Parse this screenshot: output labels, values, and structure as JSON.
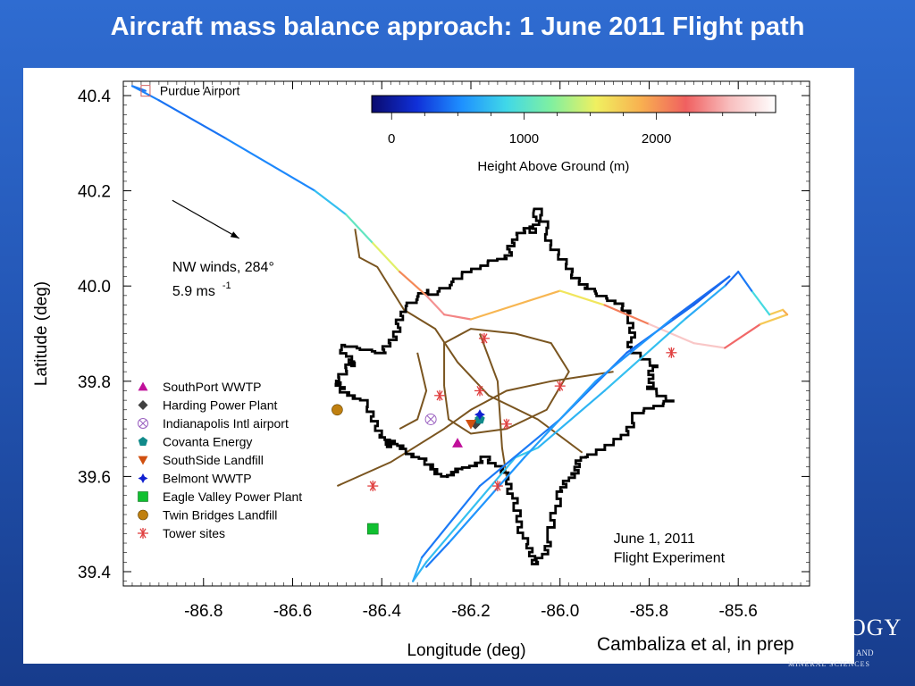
{
  "slide": {
    "title": "Aircraft mass balance approach:  1 June 2011 Flight path",
    "citation": "Cambaliza et al, in prep",
    "logo_fragment": "OGY",
    "logo_sub_a": "AND",
    "logo_sub_b": "MINERAL SCIENCES"
  },
  "chart_data": {
    "type": "scatter",
    "title": "",
    "xlabel": "Longitude (deg)",
    "ylabel": "Latitude (deg)",
    "xlim": [
      -86.98,
      -85.44
    ],
    "ylim": [
      39.37,
      40.43
    ],
    "xticks": [
      -86.8,
      -86.6,
      -86.4,
      -86.2,
      -86.0,
      -85.8,
      -85.6
    ],
    "yticks": [
      39.4,
      39.6,
      39.8,
      40.0,
      40.2,
      40.4
    ],
    "colorbar": {
      "label": "Height Above Ground (m)",
      "ticks": [
        0,
        1000,
        2000
      ],
      "range": [
        -150,
        2900
      ],
      "colors": [
        "#0a0a6e",
        "#1030d8",
        "#1e90ff",
        "#40d8e8",
        "#80f0a0",
        "#f0f060",
        "#f8b050",
        "#f06060",
        "#f8c0c0",
        "#ffffff"
      ]
    },
    "annotations": {
      "start_label": "Purdue Airport",
      "wind_line1": "NW winds, 284°",
      "wind_line2": "5.9 ms",
      "wind_sup": "-1",
      "experiment_line1": "June 1, 2011",
      "experiment_line2": "Flight Experiment"
    },
    "wind_arrow": {
      "from": [
        -86.87,
        40.18
      ],
      "to": [
        -86.72,
        40.1
      ]
    },
    "legend_position": "left-middle",
    "sources": [
      {
        "name": "SouthPort WWTP",
        "marker": "triangle",
        "color": "#c0109a",
        "lon": -86.23,
        "lat": 39.67
      },
      {
        "name": "Harding Power Plant",
        "marker": "diamond",
        "color": "#404040",
        "lon": -86.19,
        "lat": 39.71
      },
      {
        "name": "Indianapolis Intl airport",
        "marker": "circle-x",
        "color": "#9a60c0",
        "lon": -86.29,
        "lat": 39.72
      },
      {
        "name": "Covanta Energy",
        "marker": "pentagon",
        "color": "#108a8a",
        "lon": -86.18,
        "lat": 39.72
      },
      {
        "name": "SouthSide Landfill",
        "marker": "triangle-down",
        "color": "#d05010",
        "lon": -86.2,
        "lat": 39.71
      },
      {
        "name": "Belmont WWTP",
        "marker": "star4",
        "color": "#1020d0",
        "lon": -86.18,
        "lat": 39.73
      },
      {
        "name": "Eagle Valley Power Plant",
        "marker": "square",
        "color": "#10c030",
        "lon": -86.42,
        "lat": 39.49
      },
      {
        "name": "Twin Bridges Landfill",
        "marker": "circle",
        "color": "#c08010",
        "lon": -86.5,
        "lat": 39.74
      }
    ],
    "tower_sites": {
      "name": "Tower sites",
      "color": "#e04040",
      "points": [
        [
          -86.17,
          39.89
        ],
        [
          -86.27,
          39.77
        ],
        [
          -86.18,
          39.78
        ],
        [
          -86.0,
          39.79
        ],
        [
          -86.12,
          39.71
        ],
        [
          -86.42,
          39.58
        ],
        [
          -85.75,
          39.86
        ],
        [
          -86.14,
          39.58
        ]
      ]
    },
    "flight_path": {
      "series": "Height Above Ground (m)",
      "points": [
        [
          -86.93,
          40.41,
          400
        ],
        [
          -86.96,
          40.42,
          500
        ],
        [
          -86.9,
          40.39,
          450
        ],
        [
          -86.75,
          40.31,
          400
        ],
        [
          -86.55,
          40.2,
          600
        ],
        [
          -86.48,
          40.15,
          900
        ],
        [
          -86.42,
          40.09,
          1200
        ],
        [
          -86.36,
          40.03,
          1800
        ],
        [
          -86.3,
          39.98,
          2300
        ],
        [
          -86.26,
          39.94,
          2500
        ],
        [
          -86.2,
          39.93,
          2200
        ],
        [
          -86.0,
          39.99,
          1500
        ],
        [
          -85.9,
          39.96,
          1700
        ],
        [
          -85.8,
          39.92,
          2500
        ],
        [
          -85.7,
          39.88,
          2700
        ],
        [
          -85.63,
          39.87,
          2500
        ],
        [
          -85.55,
          39.92,
          2000
        ],
        [
          -85.49,
          39.94,
          1500
        ],
        [
          -85.5,
          39.95,
          2300
        ],
        [
          -85.53,
          39.94,
          1200
        ],
        [
          -85.57,
          39.99,
          600
        ],
        [
          -85.6,
          40.03,
          300
        ],
        [
          -85.63,
          40.0,
          500
        ],
        [
          -85.72,
          39.93,
          800
        ],
        [
          -85.9,
          39.78,
          700
        ],
        [
          -86.05,
          39.66,
          700
        ],
        [
          -86.1,
          39.64,
          900
        ],
        [
          -86.3,
          39.42,
          600
        ],
        [
          -86.33,
          39.38,
          800
        ],
        [
          -86.31,
          39.43,
          500
        ],
        [
          -86.18,
          39.58,
          400
        ],
        [
          -86.0,
          39.72,
          500
        ],
        [
          -85.85,
          39.86,
          400
        ],
        [
          -85.7,
          39.96,
          400
        ],
        [
          -85.62,
          40.02,
          300
        ],
        [
          -85.75,
          39.93,
          500
        ],
        [
          -85.92,
          39.8,
          600
        ],
        [
          -86.08,
          39.64,
          600
        ],
        [
          -86.25,
          39.46,
          500
        ],
        [
          -86.3,
          39.41,
          400
        ]
      ]
    },
    "city_outline": {
      "color": "#000000",
      "points": [
        [
          -86.05,
          40.17
        ],
        [
          -86.02,
          40.09
        ],
        [
          -85.98,
          40.03
        ],
        [
          -85.94,
          39.99
        ],
        [
          -85.88,
          39.96
        ],
        [
          -85.84,
          39.93
        ],
        [
          -85.84,
          39.87
        ],
        [
          -85.79,
          39.83
        ],
        [
          -85.8,
          39.78
        ],
        [
          -85.75,
          39.75
        ],
        [
          -85.83,
          39.72
        ],
        [
          -85.88,
          39.67
        ],
        [
          -85.95,
          39.64
        ],
        [
          -85.97,
          39.6
        ],
        [
          -86.0,
          39.56
        ],
        [
          -86.02,
          39.47
        ],
        [
          -86.05,
          39.42
        ],
        [
          -86.08,
          39.47
        ],
        [
          -86.1,
          39.54
        ],
        [
          -86.12,
          39.6
        ],
        [
          -86.17,
          39.64
        ],
        [
          -86.22,
          39.62
        ],
        [
          -86.26,
          39.6
        ],
        [
          -86.3,
          39.63
        ],
        [
          -86.35,
          39.65
        ],
        [
          -86.38,
          39.67
        ],
        [
          -86.4,
          39.7
        ],
        [
          -86.44,
          39.76
        ],
        [
          -86.49,
          39.78
        ],
        [
          -86.5,
          39.8
        ],
        [
          -86.46,
          39.84
        ],
        [
          -86.49,
          39.88
        ],
        [
          -86.4,
          39.86
        ],
        [
          -86.37,
          39.9
        ],
        [
          -86.35,
          39.95
        ],
        [
          -86.29,
          39.99
        ],
        [
          -86.22,
          40.03
        ],
        [
          -86.17,
          40.05
        ],
        [
          -86.12,
          40.06
        ],
        [
          -86.1,
          40.1
        ],
        [
          -86.06,
          40.12
        ],
        [
          -86.05,
          40.17
        ]
      ]
    },
    "roads": {
      "color": "#7a5520",
      "lines": [
        [
          [
            -86.46,
            40.12
          ],
          [
            -86.45,
            40.06
          ],
          [
            -86.41,
            40.04
          ],
          [
            -86.35,
            39.95
          ],
          [
            -86.28,
            39.91
          ],
          [
            -86.23,
            39.84
          ],
          [
            -86.16,
            39.77
          ],
          [
            -86.05,
            39.72
          ],
          [
            -85.95,
            39.65
          ]
        ],
        [
          [
            -86.5,
            39.58
          ],
          [
            -86.38,
            39.63
          ],
          [
            -86.26,
            39.7
          ],
          [
            -86.2,
            39.74
          ],
          [
            -86.12,
            39.78
          ],
          [
            -86.02,
            39.8
          ],
          [
            -85.88,
            39.82
          ]
        ],
        [
          [
            -86.26,
            39.79
          ],
          [
            -86.26,
            39.88
          ],
          [
            -86.2,
            39.91
          ],
          [
            -86.1,
            39.9
          ],
          [
            -86.02,
            39.88
          ],
          [
            -85.98,
            39.82
          ],
          [
            -86.03,
            39.74
          ],
          [
            -86.12,
            39.7
          ],
          [
            -86.2,
            39.69
          ],
          [
            -86.25,
            39.72
          ],
          [
            -86.26,
            39.79
          ]
        ],
        [
          [
            -86.18,
            39.9
          ],
          [
            -86.14,
            39.8
          ],
          [
            -86.13,
            39.66
          ],
          [
            -86.12,
            39.6
          ]
        ],
        [
          [
            -86.32,
            39.86
          ],
          [
            -86.3,
            39.78
          ],
          [
            -86.32,
            39.72
          ],
          [
            -86.36,
            39.7
          ]
        ]
      ]
    }
  }
}
